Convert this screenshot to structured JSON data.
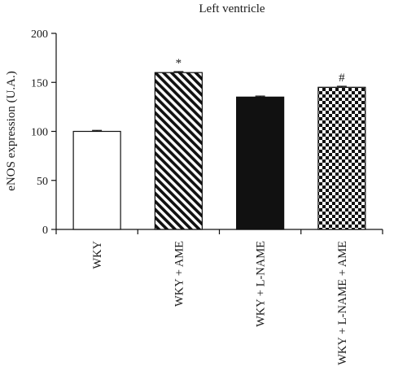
{
  "chart_data": {
    "type": "bar",
    "title": "Left ventricle",
    "ylabel": "eNOS expression (U.A.)",
    "xlabel": "",
    "ylim": [
      0,
      200
    ],
    "yticks": [
      0,
      50,
      100,
      150,
      200
    ],
    "grid": false,
    "legend": "none",
    "categories": [
      "WKY",
      "WKY + AME",
      "WKY + L-NAME",
      "WKY + L-NAME + AME"
    ],
    "values": [
      100,
      160,
      135,
      145
    ],
    "errors": [
      1,
      1,
      1,
      1
    ],
    "annotations": [
      "",
      "*",
      "",
      "#"
    ],
    "fills": [
      "white",
      "diagonal-hatch",
      "solid-black",
      "checkerboard"
    ],
    "colors": {
      "bar_edge": "#111111",
      "axis": "#111111",
      "background": "#ffffff"
    }
  }
}
